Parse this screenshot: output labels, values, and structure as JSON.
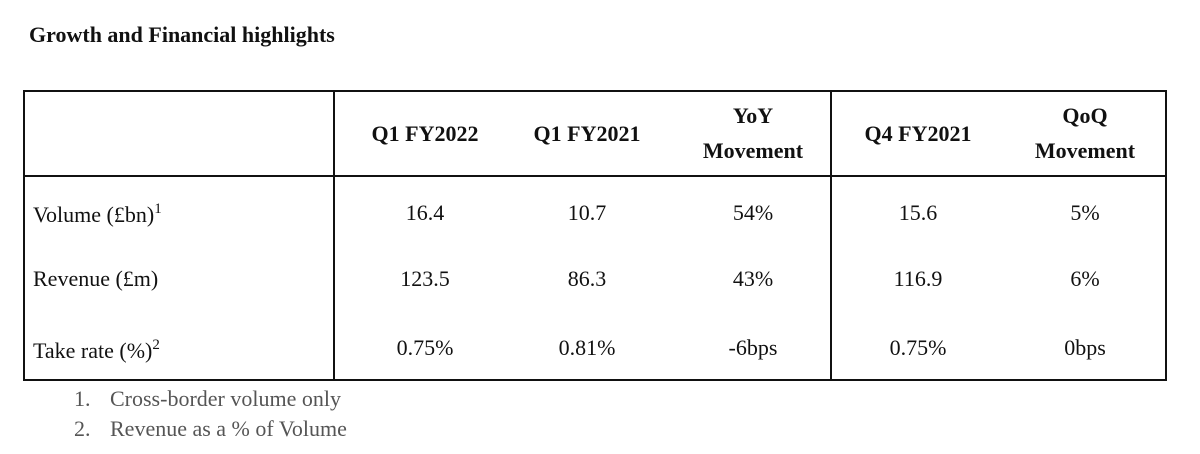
{
  "title": "Growth and Financial highlights",
  "table": {
    "headers": [
      {
        "line1": "Q1 FY2022",
        "line2": ""
      },
      {
        "line1": "Q1 FY2021",
        "line2": ""
      },
      {
        "line1": "YoY",
        "line2": "Movement"
      },
      {
        "line1": "Q4 FY2021",
        "line2": ""
      },
      {
        "line1": "QoQ",
        "line2": "Movement"
      }
    ],
    "rows": [
      {
        "label": "Volume (£bn)",
        "sup": "1",
        "values": [
          "16.4",
          "10.7",
          "54%",
          "15.6",
          "5%"
        ]
      },
      {
        "label": "Revenue (£m)",
        "sup": "",
        "values": [
          "123.5",
          "86.3",
          "43%",
          "116.9",
          "6%"
        ]
      },
      {
        "label": "Take rate (%)",
        "sup": "2",
        "values": [
          "0.75%",
          "0.81%",
          "-6bps",
          "0.75%",
          "0bps"
        ]
      }
    ]
  },
  "footnotes": [
    {
      "index": "1.",
      "text": "Cross-border volume only"
    },
    {
      "index": "2.",
      "text": "Revenue as a % of Volume"
    }
  ]
}
